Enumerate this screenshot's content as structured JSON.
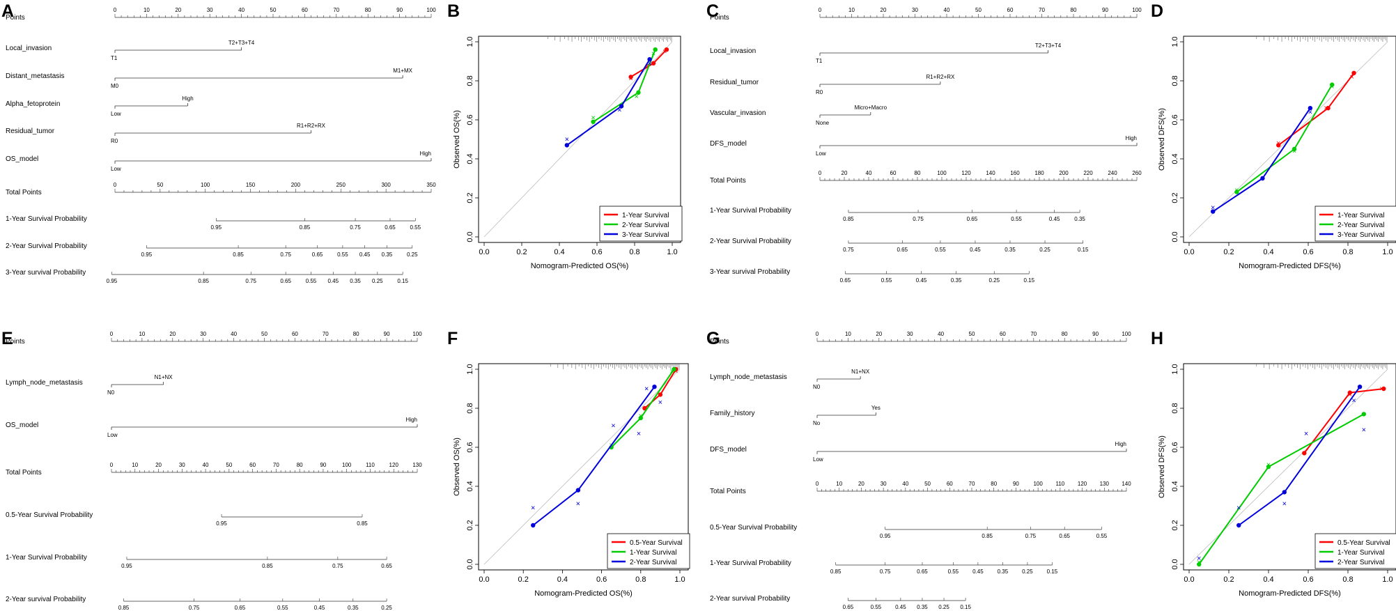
{
  "panel_letters": {
    "A": "A",
    "B": "B",
    "C": "C",
    "D": "D",
    "E": "E",
    "F": "F",
    "G": "G",
    "H": "H"
  },
  "nomograms": {
    "A": {
      "rows": [
        {
          "name": "Points",
          "kind": "axis",
          "min": 0,
          "max": 100,
          "tick_labels": [
            "0",
            "10",
            "20",
            "30",
            "40",
            "50",
            "60",
            "70",
            "80",
            "90",
            "100"
          ]
        },
        {
          "name": "Local_invasion",
          "kind": "var",
          "from": 0,
          "to": 40,
          "low_label": "T1",
          "high_label": "T2+T3+T4"
        },
        {
          "name": "Distant_metastasis",
          "kind": "var",
          "from": 0,
          "to": 91,
          "low_label": "M0",
          "high_label": "M1+MX"
        },
        {
          "name": "Alpha_fetoprotein",
          "kind": "var",
          "from": 0,
          "to": 23,
          "low_label": "Low",
          "high_label": "High"
        },
        {
          "name": "Residual_tumor",
          "kind": "var",
          "from": 0,
          "to": 62,
          "low_label": "R0",
          "high_label": "R1+R2+RX"
        },
        {
          "name": "OS_model",
          "kind": "var",
          "from": 0,
          "to": 100,
          "low_label": "Low",
          "high_label": "High"
        },
        {
          "name": "Total Points",
          "kind": "axis",
          "min": 0,
          "max": 350,
          "tick_labels": [
            "0",
            "50",
            "100",
            "150",
            "200",
            "250",
            "300",
            "350"
          ]
        },
        {
          "name": "1-Year Survival Probability",
          "kind": "prob",
          "labels": [
            "0.95",
            "0.85",
            "0.75",
            "0.65",
            "0.55"
          ],
          "pos": [
            32,
            60,
            76,
            87,
            95
          ]
        },
        {
          "name": "2-Year Survival Probability",
          "kind": "prob",
          "labels": [
            "0.95",
            "0.85",
            "0.75",
            "0.65",
            "0.55",
            "0.45",
            "0.35",
            "0.25"
          ],
          "pos": [
            10,
            39,
            54,
            64,
            72,
            79,
            86,
            94
          ]
        },
        {
          "name": "3-Year survival Probability",
          "kind": "prob",
          "labels": [
            "0.95",
            "0.85",
            "0.75",
            "0.65",
            "0.55",
            "0.45",
            "0.35",
            "0.25",
            "0.15"
          ],
          "pos": [
            -1,
            28,
            43,
            54,
            62,
            69,
            76,
            83,
            91
          ]
        }
      ]
    },
    "C": {
      "rows": [
        {
          "name": "Points",
          "kind": "axis",
          "min": 0,
          "max": 100,
          "tick_labels": [
            "0",
            "10",
            "20",
            "30",
            "40",
            "50",
            "60",
            "70",
            "80",
            "90",
            "100"
          ]
        },
        {
          "name": "Local_invasion",
          "kind": "var",
          "from": 0,
          "to": 72,
          "low_label": "T1",
          "high_label": "T2+T3+T4"
        },
        {
          "name": "Residual_tumor",
          "kind": "var",
          "from": 0,
          "to": 38,
          "low_label": "R0",
          "high_label": "R1+R2+RX"
        },
        {
          "name": "Vascular_invasion",
          "kind": "var",
          "from": 0,
          "to": 16,
          "low_label": "None",
          "high_label": "Micro+Macro"
        },
        {
          "name": "DFS_model",
          "kind": "var",
          "from": 0,
          "to": 100,
          "low_label": "Low",
          "high_label": "High"
        },
        {
          "name": "Total Points",
          "kind": "axis",
          "min": 0,
          "max": 260,
          "tick_labels": [
            "0",
            "20",
            "40",
            "60",
            "80",
            "100",
            "120",
            "140",
            "160",
            "180",
            "200",
            "220",
            "240",
            "260"
          ]
        },
        {
          "name": "1-Year Survival Probability",
          "kind": "prob",
          "labels": [
            "0.85",
            "0.75",
            "0.65",
            "0.55",
            "0.45",
            "0.35"
          ],
          "pos": [
            9,
            31,
            48,
            62,
            74,
            82
          ]
        },
        {
          "name": "2-Year Survival Probability",
          "kind": "prob",
          "labels": [
            "0.75",
            "0.65",
            "0.55",
            "0.45",
            "0.35",
            "0.25",
            "0.15"
          ],
          "pos": [
            9,
            26,
            38,
            49,
            60,
            71,
            83
          ]
        },
        {
          "name": "3-Year survival Probability",
          "kind": "prob",
          "labels": [
            "0.65",
            "0.55",
            "0.45",
            "0.35",
            "0.25",
            "0.15"
          ],
          "pos": [
            8,
            21,
            32,
            43,
            55,
            66
          ]
        }
      ]
    },
    "E": {
      "rows": [
        {
          "name": "Points",
          "kind": "axis",
          "min": 0,
          "max": 100,
          "tick_labels": [
            "0",
            "10",
            "20",
            "30",
            "40",
            "50",
            "60",
            "70",
            "80",
            "90",
            "100"
          ]
        },
        {
          "name": "Lymph_node_metastasis",
          "kind": "var",
          "from": 0,
          "to": 17,
          "low_label": "N0",
          "high_label": "N1+NX"
        },
        {
          "name": "OS_model",
          "kind": "var",
          "from": 0,
          "to": 100,
          "low_label": "Low",
          "high_label": "High"
        },
        {
          "name": "Total Points",
          "kind": "axis",
          "min": 0,
          "max": 130,
          "tick_labels": [
            "0",
            "10",
            "20",
            "30",
            "40",
            "50",
            "60",
            "70",
            "80",
            "90",
            "100",
            "110",
            "120",
            "130"
          ]
        },
        {
          "name": "0.5-Year Survival Probability",
          "kind": "prob",
          "labels": [
            "0.95",
            "0.85"
          ],
          "pos": [
            36,
            82
          ]
        },
        {
          "name": "1-Year Survival Probability",
          "kind": "prob",
          "labels": [
            "0.95",
            "0.85",
            "0.75",
            "0.65"
          ],
          "pos": [
            5,
            51,
            74,
            90
          ]
        },
        {
          "name": "2-Year survival Probability",
          "kind": "prob",
          "labels": [
            "0.85",
            "0.75",
            "0.65",
            "0.55",
            "0.45",
            "0.35",
            "0.25"
          ],
          "pos": [
            4,
            27,
            42,
            56,
            68,
            79,
            90
          ]
        }
      ]
    },
    "G": {
      "rows": [
        {
          "name": "Points",
          "kind": "axis",
          "min": 0,
          "max": 100,
          "tick_labels": [
            "0",
            "10",
            "20",
            "30",
            "40",
            "50",
            "60",
            "70",
            "80",
            "90",
            "100"
          ]
        },
        {
          "name": "Lymph_node_metastasis",
          "kind": "var",
          "from": 0,
          "to": 14,
          "low_label": "N0",
          "high_label": "N1+NX"
        },
        {
          "name": "Family_history",
          "kind": "var",
          "from": 0,
          "to": 19,
          "low_label": "No",
          "high_label": "Yes"
        },
        {
          "name": "DFS_model",
          "kind": "var",
          "from": 0,
          "to": 100,
          "low_label": "Low",
          "high_label": "High"
        },
        {
          "name": "Total Points",
          "kind": "axis",
          "min": 0,
          "max": 140,
          "tick_labels": [
            "0",
            "10",
            "20",
            "30",
            "40",
            "50",
            "60",
            "70",
            "80",
            "90",
            "100",
            "110",
            "120",
            "130",
            "140"
          ]
        },
        {
          "name": "0.5-Year Survival Probability",
          "kind": "prob",
          "labels": [
            "0.95",
            "0.85",
            "0.75",
            "0.65",
            "0.55"
          ],
          "pos": [
            22,
            55,
            69,
            80,
            92
          ]
        },
        {
          "name": "1-Year Survival Probability",
          "kind": "prob",
          "labels": [
            "0.85",
            "0.75",
            "0.65",
            "0.55",
            "0.45",
            "0.35",
            "0.25",
            "0.15"
          ],
          "pos": [
            6,
            22,
            34,
            44,
            52,
            60,
            68,
            76
          ]
        },
        {
          "name": "2-Year survival Probability",
          "kind": "prob",
          "labels": [
            "0.65",
            "0.55",
            "0.45",
            "0.35",
            "0.25",
            "0.15"
          ],
          "pos": [
            10,
            19,
            27,
            34,
            41,
            48
          ]
        }
      ]
    }
  },
  "chart_data": [
    {
      "id": "B",
      "type": "line",
      "xlabel": "Nomogram-Predicted OS(%)",
      "ylabel": "Observed OS(%)",
      "xlim": [
        0,
        1
      ],
      "ylim": [
        0,
        1
      ],
      "ticks": [
        "0.0",
        "0.2",
        "0.4",
        "0.6",
        "0.8",
        "1.0"
      ],
      "series": [
        {
          "name": "1-Year Survival",
          "color": "#ff0000",
          "points": [
            [
              0.78,
              0.82
            ],
            [
              0.9,
              0.89
            ],
            [
              0.97,
              0.96
            ]
          ],
          "crosses": [
            [
              0.78,
              0.81
            ],
            [
              0.87,
              0.88
            ],
            [
              0.96,
              0.95
            ]
          ]
        },
        {
          "name": "2-Year Survival",
          "color": "#00cc00",
          "points": [
            [
              0.58,
              0.59
            ],
            [
              0.82,
              0.74
            ],
            [
              0.91,
              0.96
            ]
          ],
          "crosses": [
            [
              0.58,
              0.61
            ],
            [
              0.81,
              0.72
            ],
            [
              0.9,
              0.94
            ]
          ]
        },
        {
          "name": "3-Year Survival",
          "color": "#0000dd",
          "points": [
            [
              0.44,
              0.47
            ],
            [
              0.73,
              0.67
            ],
            [
              0.88,
              0.91
            ]
          ],
          "crosses": [
            [
              0.44,
              0.5
            ],
            [
              0.72,
              0.65
            ],
            [
              0.88,
              0.89
            ]
          ]
        }
      ]
    },
    {
      "id": "D",
      "type": "line",
      "xlabel": "Nomogram-Predicted DFS(%)",
      "ylabel": "Observed DFS(%)",
      "xlim": [
        0,
        1
      ],
      "ylim": [
        0,
        1
      ],
      "ticks": [
        "0.0",
        "0.2",
        "0.4",
        "0.6",
        "0.8",
        "1.0"
      ],
      "series": [
        {
          "name": "1-Year Survival",
          "color": "#ff0000",
          "points": [
            [
              0.45,
              0.47
            ],
            [
              0.7,
              0.66
            ],
            [
              0.83,
              0.84
            ]
          ],
          "crosses": [
            [
              0.45,
              0.48
            ],
            [
              0.69,
              0.66
            ],
            [
              0.82,
              0.82
            ]
          ]
        },
        {
          "name": "2-Year Survival",
          "color": "#00cc00",
          "points": [
            [
              0.24,
              0.23
            ],
            [
              0.53,
              0.45
            ],
            [
              0.72,
              0.78
            ]
          ],
          "crosses": [
            [
              0.24,
              0.24
            ],
            [
              0.53,
              0.44
            ],
            [
              0.72,
              0.77
            ]
          ]
        },
        {
          "name": "3-Year Survival",
          "color": "#0000dd",
          "points": [
            [
              0.12,
              0.13
            ],
            [
              0.37,
              0.3
            ],
            [
              0.61,
              0.66
            ]
          ],
          "crosses": [
            [
              0.12,
              0.15
            ],
            [
              0.37,
              0.3
            ],
            [
              0.61,
              0.64
            ]
          ]
        }
      ]
    },
    {
      "id": "F",
      "type": "line",
      "xlabel": "Nomogram-Predicted OS(%)",
      "ylabel": "Observed OS(%)",
      "xlim": [
        0,
        1
      ],
      "ylim": [
        0,
        1
      ],
      "ticks": [
        "0.0",
        "0.2",
        "0.4",
        "0.6",
        "0.8",
        "1.0"
      ],
      "series": [
        {
          "name": "0.5-Year Survival",
          "color": "#ff0000",
          "points": [
            [
              0.82,
              0.8
            ],
            [
              0.9,
              0.87
            ],
            [
              0.98,
              1.0
            ]
          ],
          "crosses": [
            [
              0.82,
              0.8
            ],
            [
              0.9,
              0.87
            ],
            [
              0.98,
              0.99
            ]
          ]
        },
        {
          "name": "1-Year Survival",
          "color": "#00cc00",
          "points": [
            [
              0.65,
              0.6
            ],
            [
              0.8,
              0.75
            ],
            [
              0.97,
              1.0
            ]
          ],
          "crosses": [
            [
              0.65,
              0.61
            ],
            [
              0.8,
              0.76
            ],
            [
              0.96,
              0.99
            ]
          ]
        },
        {
          "name": "2-Year Survival",
          "color": "#0000dd",
          "points": [
            [
              0.25,
              0.2
            ],
            [
              0.48,
              0.38
            ],
            [
              0.87,
              0.91
            ]
          ],
          "crosses": [
            [
              0.25,
              0.29
            ],
            [
              0.48,
              0.31
            ],
            [
              0.66,
              0.71
            ],
            [
              0.79,
              0.67
            ],
            [
              0.83,
              0.9
            ],
            [
              0.9,
              0.83
            ]
          ]
        }
      ]
    },
    {
      "id": "H",
      "type": "line",
      "xlabel": "Nomogram-Predicted DFS(%)",
      "ylabel": "Observed DFS(%)",
      "xlim": [
        0,
        1
      ],
      "ylim": [
        0,
        1
      ],
      "ticks": [
        "0.0",
        "0.2",
        "0.4",
        "0.6",
        "0.8",
        "1.0"
      ],
      "series": [
        {
          "name": "0.5-Year Survival",
          "color": "#ff0000",
          "points": [
            [
              0.58,
              0.57
            ],
            [
              0.81,
              0.88
            ],
            [
              0.98,
              0.9
            ]
          ],
          "crosses": [
            [
              0.58,
              0.57
            ],
            [
              0.81,
              0.87
            ],
            [
              0.97,
              0.9
            ]
          ]
        },
        {
          "name": "1-Year Survival",
          "color": "#00cc00",
          "points": [
            [
              0.05,
              0.0
            ],
            [
              0.4,
              0.5
            ],
            [
              0.88,
              0.77
            ]
          ],
          "crosses": [
            [
              0.05,
              0.01
            ],
            [
              0.4,
              0.51
            ],
            [
              0.88,
              0.77
            ]
          ]
        },
        {
          "name": "2-Year Survival",
          "color": "#0000dd",
          "points": [
            [
              0.25,
              0.2
            ],
            [
              0.48,
              0.37
            ],
            [
              0.86,
              0.91
            ]
          ],
          "crosses": [
            [
              0.05,
              0.03
            ],
            [
              0.25,
              0.29
            ],
            [
              0.48,
              0.31
            ],
            [
              0.59,
              0.67
            ],
            [
              0.83,
              0.84
            ],
            [
              0.88,
              0.69
            ]
          ]
        }
      ]
    }
  ]
}
